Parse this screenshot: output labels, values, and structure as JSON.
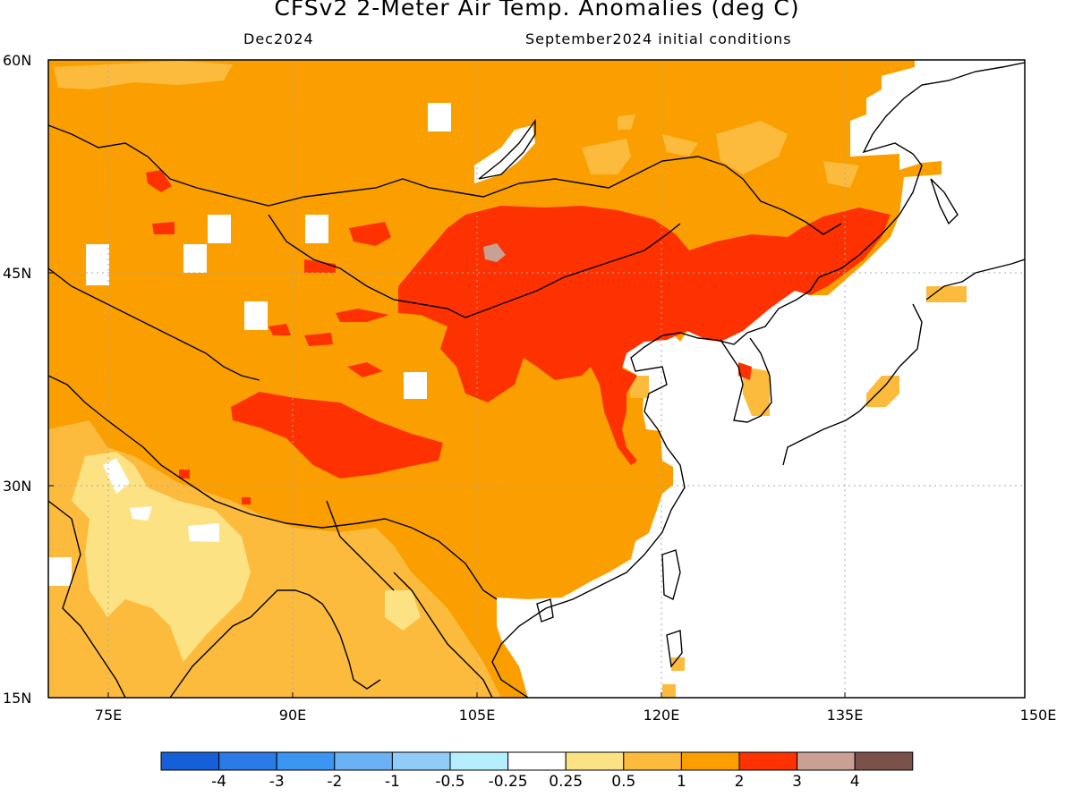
{
  "title": "CFSv2 2-Meter Air Temp. Anomalies (deg C)",
  "subtitle_left": "Dec2024",
  "subtitle_right": "September2024 initial conditions",
  "lat_labels": [
    "60N",
    "45N",
    "30N",
    "15N"
  ],
  "lon_labels": [
    "75E",
    "90E",
    "105E",
    "120E",
    "135E",
    "150E"
  ],
  "colorbar": {
    "colors": [
      "#1560d8",
      "#2a7ae8",
      "#3b95f2",
      "#6bb2f5",
      "#8fcdf8",
      "#b5eefc",
      "#ffffff",
      "#fde283",
      "#fcbb3d",
      "#fb9f00",
      "#fd3200",
      "#c9a093",
      "#7b5249"
    ],
    "labels": [
      "-4",
      "-3",
      "-2",
      "-1",
      "-0.5",
      "-0.25",
      "0.25",
      "0.5",
      "1",
      "2",
      "3",
      "4"
    ]
  },
  "colors": {
    "anom_05_1": "#fcbb3d",
    "anom_1_2": "#fb9f00",
    "anom_2_3": "#fd3200",
    "anom_3_4": "#c9a093",
    "anom_025_05": "#fde283",
    "ocean": "#ffffff",
    "coast": "#000000",
    "grid": "#aaaaaa"
  }
}
